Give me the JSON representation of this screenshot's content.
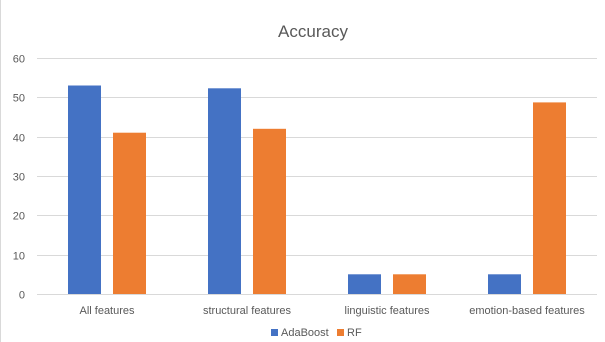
{
  "chart_data": {
    "type": "bar",
    "title": "Accuracy",
    "categories": [
      "All features",
      "structural features",
      "linguistic features",
      "emotion-based features"
    ],
    "series": [
      {
        "name": "AdaBoost",
        "color": "#4472c4",
        "values": [
          53,
          52.3,
          5,
          5
        ]
      },
      {
        "name": "RF",
        "color": "#ed7d31",
        "values": [
          41,
          42,
          5,
          48.7
        ]
      }
    ],
    "ylim": [
      0,
      60
    ],
    "yticks": [
      0,
      10,
      20,
      30,
      40,
      50,
      60
    ],
    "grid": true,
    "legend": "bottom"
  }
}
